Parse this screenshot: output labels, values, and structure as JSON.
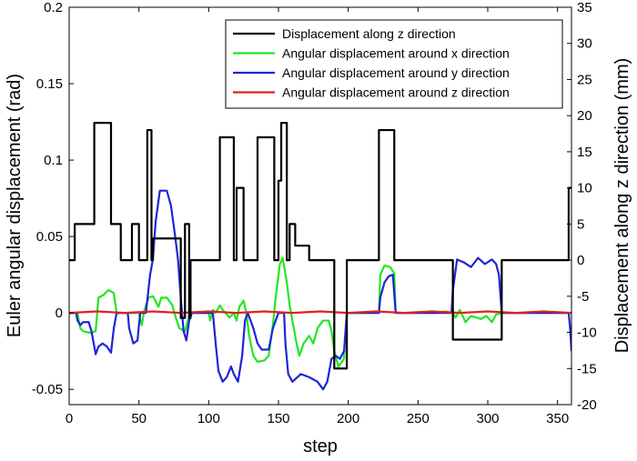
{
  "chart_data": {
    "type": "line",
    "xlabel": "step",
    "ylabel_left": "Euler angular displacement (rad)",
    "ylabel_right": "Displacement along z direction (mm)",
    "xlim": [
      0,
      360
    ],
    "ylim_left": [
      -0.06,
      0.2
    ],
    "ylim_right": [
      -20,
      35
    ],
    "x_ticks": [
      0,
      50,
      100,
      150,
      200,
      250,
      300,
      350
    ],
    "y_ticks_left": [
      -0.05,
      0,
      0.05,
      0.1,
      0.15,
      0.2
    ],
    "y_ticks_left_labels": [
      "-0.05",
      "0",
      "0.05",
      "0.1",
      "0.15",
      "0.2"
    ],
    "y_ticks_right": [
      -20,
      -15,
      -10,
      -5,
      0,
      5,
      10,
      15,
      20,
      25,
      30,
      35
    ],
    "legend_position": "top-right",
    "grid": false,
    "series": [
      {
        "name": "Displacement along z direction",
        "axis": "right",
        "color": "#000000",
        "points": [
          [
            0,
            0
          ],
          [
            4,
            0
          ],
          [
            4,
            5
          ],
          [
            18,
            5
          ],
          [
            18,
            19
          ],
          [
            30,
            19
          ],
          [
            30,
            5
          ],
          [
            37,
            5
          ],
          [
            37,
            0
          ],
          [
            45,
            0
          ],
          [
            45,
            5
          ],
          [
            50,
            5
          ],
          [
            50,
            0
          ],
          [
            56,
            0
          ],
          [
            56,
            18
          ],
          [
            59,
            18
          ],
          [
            59,
            0
          ],
          [
            60,
            0
          ],
          [
            60,
            3
          ],
          [
            80,
            3
          ],
          [
            80,
            -8
          ],
          [
            83,
            -8
          ],
          [
            83,
            5
          ],
          [
            86,
            5
          ],
          [
            86,
            -8
          ],
          [
            87,
            -8
          ],
          [
            87,
            0
          ],
          [
            108,
            0
          ],
          [
            108,
            17
          ],
          [
            118,
            17
          ],
          [
            118,
            0
          ],
          [
            120,
            0
          ],
          [
            120,
            10
          ],
          [
            125,
            10
          ],
          [
            125,
            0
          ],
          [
            135,
            0
          ],
          [
            135,
            17
          ],
          [
            147,
            17
          ],
          [
            147,
            0
          ],
          [
            150,
            0
          ],
          [
            150,
            11
          ],
          [
            152,
            11
          ],
          [
            152,
            19
          ],
          [
            156,
            19
          ],
          [
            156,
            0
          ],
          [
            158,
            0
          ],
          [
            158,
            5
          ],
          [
            162,
            5
          ],
          [
            162,
            2
          ],
          [
            172,
            2
          ],
          [
            172,
            0
          ],
          [
            190,
            0
          ],
          [
            190,
            -15
          ],
          [
            199,
            -15
          ],
          [
            199,
            0
          ],
          [
            222,
            0
          ],
          [
            222,
            18
          ],
          [
            233,
            18
          ],
          [
            233,
            0
          ],
          [
            275,
            0
          ],
          [
            275,
            -11
          ],
          [
            310,
            -11
          ],
          [
            310,
            0
          ],
          [
            358,
            0
          ],
          [
            358,
            10
          ],
          [
            360,
            10
          ]
        ]
      },
      {
        "name": "Angular displacement around x direction",
        "axis": "left",
        "color": "#22e622",
        "points": [
          [
            0,
            0
          ],
          [
            6,
            0
          ],
          [
            8,
            -0.01
          ],
          [
            10,
            -0.012
          ],
          [
            15,
            -0.013
          ],
          [
            19,
            -0.012
          ],
          [
            21,
            0.01
          ],
          [
            25,
            0.012
          ],
          [
            28,
            0.015
          ],
          [
            32,
            0.013
          ],
          [
            34,
            0
          ],
          [
            50,
            0
          ],
          [
            52,
            -0.008
          ],
          [
            54,
            0.002
          ],
          [
            57,
            0.01
          ],
          [
            60,
            0.011
          ],
          [
            64,
            0.004
          ],
          [
            66,
            0.01
          ],
          [
            70,
            0.01
          ],
          [
            74,
            0.005
          ],
          [
            76,
            -0.002
          ],
          [
            79,
            -0.01
          ],
          [
            83,
            -0.012
          ],
          [
            86,
            -0.002
          ],
          [
            88,
            0
          ],
          [
            100,
            0
          ],
          [
            101,
            -0.005
          ],
          [
            103,
            0.002
          ],
          [
            105,
            0
          ],
          [
            108,
            0.005
          ],
          [
            110,
            0.002
          ],
          [
            115,
            -0.003
          ],
          [
            118,
            0
          ],
          [
            120,
            -0.005
          ],
          [
            122,
            0.004
          ],
          [
            125,
            0.008
          ],
          [
            127,
            0
          ],
          [
            129,
            -0.015
          ],
          [
            132,
            -0.028
          ],
          [
            135,
            -0.032
          ],
          [
            140,
            -0.031
          ],
          [
            143,
            -0.028
          ],
          [
            146,
            -0.008
          ],
          [
            148,
            0.01
          ],
          [
            151,
            0.032
          ],
          [
            153,
            0.036
          ],
          [
            156,
            0.02
          ],
          [
            158,
            0.005
          ],
          [
            161,
            -0.01
          ],
          [
            163,
            -0.02
          ],
          [
            165,
            -0.028
          ],
          [
            168,
            -0.02
          ],
          [
            172,
            -0.015
          ],
          [
            175,
            -0.02
          ],
          [
            178,
            -0.01
          ],
          [
            182,
            -0.005
          ],
          [
            186,
            -0.005
          ],
          [
            188,
            -0.012
          ],
          [
            190,
            -0.025
          ],
          [
            193,
            -0.035
          ],
          [
            197,
            -0.03
          ],
          [
            199,
            0
          ],
          [
            222,
            0
          ],
          [
            223,
            0.025
          ],
          [
            226,
            0.031
          ],
          [
            230,
            0.03
          ],
          [
            233,
            0.026
          ],
          [
            234,
            0
          ],
          [
            262,
            0
          ],
          [
            270,
            0.001
          ],
          [
            275,
            0
          ],
          [
            277,
            -0.003
          ],
          [
            280,
            0.002
          ],
          [
            284,
            -0.006
          ],
          [
            288,
            -0.002
          ],
          [
            292,
            -0.003
          ],
          [
            295,
            -0.004
          ],
          [
            299,
            -0.002
          ],
          [
            303,
            -0.006
          ],
          [
            306,
            -0.001
          ],
          [
            310,
            0
          ],
          [
            360,
            0
          ]
        ]
      },
      {
        "name": "Angular displacement around y direction",
        "axis": "left",
        "color": "#1f24d6",
        "points": [
          [
            0,
            0
          ],
          [
            5,
            0
          ],
          [
            6,
            -0.005
          ],
          [
            8,
            -0.008
          ],
          [
            10,
            -0.006
          ],
          [
            14,
            -0.006
          ],
          [
            16,
            -0.012
          ],
          [
            19,
            -0.027
          ],
          [
            21,
            -0.022
          ],
          [
            24,
            -0.02
          ],
          [
            27,
            -0.022
          ],
          [
            30,
            -0.026
          ],
          [
            32,
            -0.01
          ],
          [
            34,
            0
          ],
          [
            42,
            0
          ],
          [
            43,
            -0.01
          ],
          [
            46,
            -0.02
          ],
          [
            49,
            -0.018
          ],
          [
            50,
            -0.008
          ],
          [
            51,
            0
          ],
          [
            55,
            0
          ],
          [
            58,
            0.025
          ],
          [
            60,
            0.035
          ],
          [
            62,
            0.06
          ],
          [
            65,
            0.08
          ],
          [
            70,
            0.08
          ],
          [
            73,
            0.07
          ],
          [
            76,
            0.05
          ],
          [
            78,
            0.035
          ],
          [
            80,
            0.01
          ],
          [
            82,
            -0.012
          ],
          [
            84,
            -0.018
          ],
          [
            86,
            -0.005
          ],
          [
            88,
            0
          ],
          [
            103,
            0
          ],
          [
            105,
            -0.02
          ],
          [
            107,
            -0.038
          ],
          [
            110,
            -0.045
          ],
          [
            113,
            -0.042
          ],
          [
            116,
            -0.035
          ],
          [
            118,
            -0.04
          ],
          [
            121,
            -0.045
          ],
          [
            124,
            -0.028
          ],
          [
            126,
            -0.005
          ],
          [
            128,
            0
          ],
          [
            132,
            -0.01
          ],
          [
            135,
            -0.02
          ],
          [
            138,
            -0.024
          ],
          [
            143,
            -0.024
          ],
          [
            146,
            -0.01
          ],
          [
            150,
            0
          ],
          [
            154,
            0
          ],
          [
            155,
            -0.02
          ],
          [
            157,
            -0.04
          ],
          [
            160,
            -0.045
          ],
          [
            166,
            -0.04
          ],
          [
            172,
            -0.042
          ],
          [
            178,
            -0.045
          ],
          [
            182,
            -0.05
          ],
          [
            185,
            -0.045
          ],
          [
            188,
            -0.03
          ],
          [
            191,
            -0.028
          ],
          [
            194,
            -0.03
          ],
          [
            197,
            -0.025
          ],
          [
            199,
            0
          ],
          [
            222,
            0
          ],
          [
            223,
            0.01
          ],
          [
            226,
            0.02
          ],
          [
            229,
            0.024
          ],
          [
            232,
            0.025
          ],
          [
            234,
            0
          ],
          [
            274,
            0
          ],
          [
            275,
            0.015
          ],
          [
            278,
            0.035
          ],
          [
            283,
            0.033
          ],
          [
            288,
            0.03
          ],
          [
            293,
            0.036
          ],
          [
            298,
            0.032
          ],
          [
            303,
            0.035
          ],
          [
            306,
            0.032
          ],
          [
            308,
            0.025
          ],
          [
            310,
            0
          ],
          [
            358,
            0
          ],
          [
            359,
            -0.01
          ],
          [
            360,
            -0.025
          ]
        ]
      },
      {
        "name": "Angular displacement around z direction",
        "axis": "left",
        "color": "#e02020",
        "points": [
          [
            0,
            0
          ],
          [
            20,
            0.001
          ],
          [
            40,
            0
          ],
          [
            60,
            0.001
          ],
          [
            80,
            0
          ],
          [
            100,
            0.001
          ],
          [
            120,
            0
          ],
          [
            140,
            0.001
          ],
          [
            160,
            0
          ],
          [
            180,
            0.001
          ],
          [
            200,
            0
          ],
          [
            220,
            0.001
          ],
          [
            240,
            0
          ],
          [
            260,
            0.001
          ],
          [
            280,
            0
          ],
          [
            300,
            0.001
          ],
          [
            320,
            0
          ],
          [
            340,
            0.001
          ],
          [
            360,
            0
          ]
        ]
      }
    ]
  }
}
